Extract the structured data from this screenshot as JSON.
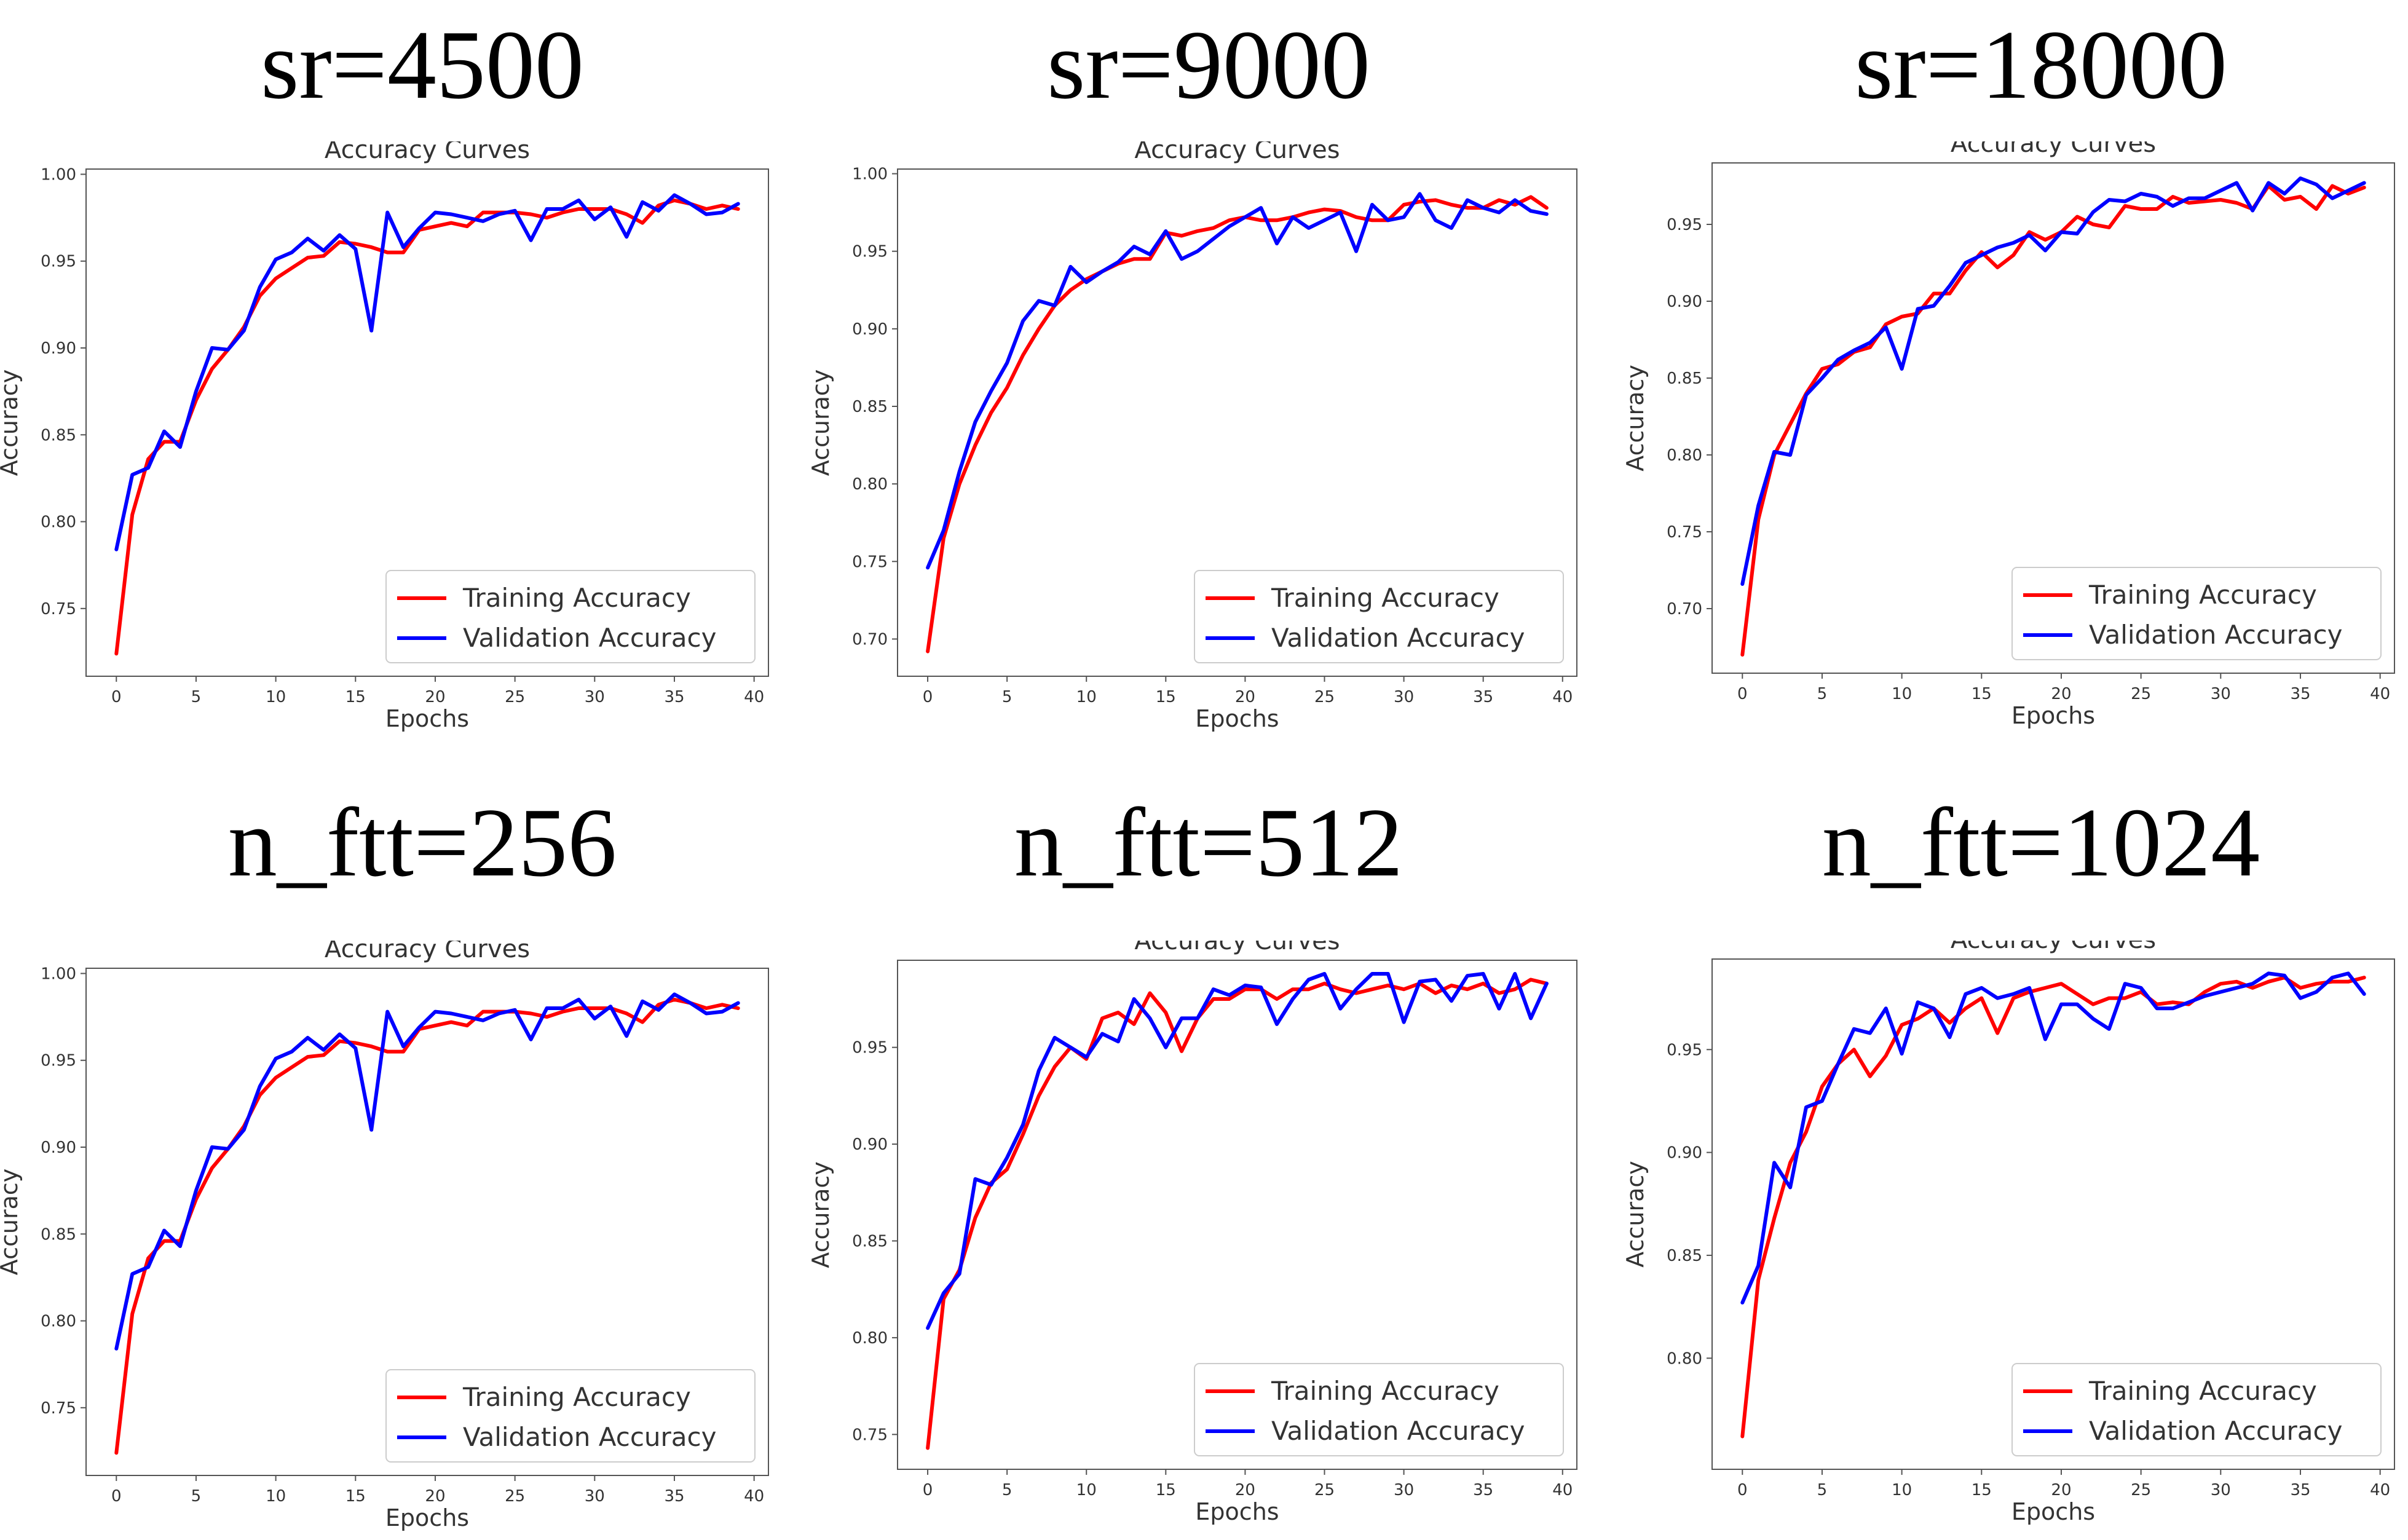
{
  "colors": {
    "training": "#ff0000",
    "validation": "#0000ff",
    "axis": "#555555",
    "text": "#333333"
  },
  "chart_data": [
    {
      "type": "line",
      "panel_title": "sr=4500",
      "title": "Accuracy Curves",
      "xlabel": "Epochs",
      "ylabel": "Accuracy",
      "xlim": [
        -1.9,
        40.9
      ],
      "ylim": [
        0.711,
        1.003
      ],
      "xticks": [
        "0",
        "5",
        "10",
        "15",
        "20",
        "25",
        "30",
        "35",
        "40"
      ],
      "yticks": [
        "0.75",
        "0.80",
        "0.85",
        "0.90",
        "0.95",
        "1.00"
      ],
      "legend": [
        "Training Accuracy",
        "Validation Accuracy"
      ],
      "legend_position": "lower-right",
      "series": [
        {
          "name": "Training Accuracy",
          "values": [
            0.724,
            0.804,
            0.836,
            0.846,
            0.846,
            0.87,
            0.888,
            0.899,
            0.912,
            0.93,
            0.94,
            0.946,
            0.952,
            0.953,
            0.961,
            0.96,
            0.958,
            0.955,
            0.955,
            0.968,
            0.97,
            0.972,
            0.97,
            0.978,
            0.978,
            0.978,
            0.977,
            0.975,
            0.978,
            0.98,
            0.98,
            0.98,
            0.977,
            0.972,
            0.982,
            0.985,
            0.983,
            0.98,
            0.982,
            0.98
          ]
        },
        {
          "name": "Validation Accuracy",
          "values": [
            0.784,
            0.827,
            0.831,
            0.852,
            0.843,
            0.875,
            0.9,
            0.899,
            0.91,
            0.935,
            0.951,
            0.955,
            0.963,
            0.956,
            0.965,
            0.957,
            0.91,
            0.978,
            0.958,
            0.969,
            0.978,
            0.977,
            0.975,
            0.973,
            0.977,
            0.979,
            0.962,
            0.98,
            0.98,
            0.985,
            0.974,
            0.981,
            0.964,
            0.984,
            0.979,
            0.988,
            0.983,
            0.977,
            0.978,
            0.983
          ]
        }
      ]
    },
    {
      "type": "line",
      "panel_title": "sr=9000",
      "title": "Accuracy Curves",
      "xlabel": "Epochs",
      "ylabel": "Accuracy",
      "xlim": [
        -1.9,
        40.9
      ],
      "ylim": [
        0.676,
        1.003
      ],
      "xticks": [
        "0",
        "5",
        "10",
        "15",
        "20",
        "25",
        "30",
        "35",
        "40"
      ],
      "yticks": [
        "0.70",
        "0.75",
        "0.80",
        "0.85",
        "0.90",
        "0.95",
        "1.00"
      ],
      "legend": [
        "Training Accuracy",
        "Validation Accuracy"
      ],
      "legend_position": "lower-right",
      "series": [
        {
          "name": "Training Accuracy",
          "values": [
            0.692,
            0.765,
            0.8,
            0.825,
            0.846,
            0.862,
            0.883,
            0.9,
            0.915,
            0.925,
            0.932,
            0.937,
            0.942,
            0.945,
            0.945,
            0.962,
            0.96,
            0.963,
            0.965,
            0.97,
            0.972,
            0.97,
            0.97,
            0.972,
            0.975,
            0.977,
            0.976,
            0.972,
            0.97,
            0.97,
            0.98,
            0.982,
            0.983,
            0.98,
            0.978,
            0.978,
            0.983,
            0.98,
            0.985,
            0.978
          ]
        },
        {
          "name": "Validation Accuracy",
          "values": [
            0.746,
            0.77,
            0.808,
            0.84,
            0.86,
            0.878,
            0.905,
            0.918,
            0.915,
            0.94,
            0.93,
            0.937,
            0.943,
            0.953,
            0.948,
            0.963,
            0.945,
            0.95,
            0.958,
            0.966,
            0.972,
            0.978,
            0.955,
            0.972,
            0.965,
            0.97,
            0.975,
            0.95,
            0.98,
            0.97,
            0.972,
            0.987,
            0.97,
            0.965,
            0.983,
            0.978,
            0.975,
            0.983,
            0.976,
            0.974
          ]
        }
      ]
    },
    {
      "type": "line",
      "panel_title": "sr=18000",
      "title": "Accuracy Curves",
      "xlabel": "Epochs",
      "ylabel": "Accuracy",
      "xlim": [
        -1.9,
        40.9
      ],
      "ylim": [
        0.658,
        0.99
      ],
      "xticks": [
        "0",
        "5",
        "10",
        "15",
        "20",
        "25",
        "30",
        "35",
        "40"
      ],
      "yticks": [
        "0.70",
        "0.75",
        "0.80",
        "0.85",
        "0.90",
        "0.95"
      ],
      "legend": [
        "Training Accuracy",
        "Validation Accuracy"
      ],
      "legend_position": "lower-right",
      "series": [
        {
          "name": "Training Accuracy",
          "values": [
            0.67,
            0.758,
            0.8,
            0.82,
            0.84,
            0.856,
            0.859,
            0.867,
            0.87,
            0.885,
            0.89,
            0.892,
            0.905,
            0.905,
            0.92,
            0.932,
            0.922,
            0.93,
            0.945,
            0.94,
            0.945,
            0.955,
            0.95,
            0.948,
            0.962,
            0.96,
            0.96,
            0.968,
            0.964,
            0.965,
            0.966,
            0.964,
            0.96,
            0.975,
            0.966,
            0.968,
            0.96,
            0.975,
            0.97,
            0.974
          ]
        },
        {
          "name": "Validation Accuracy",
          "values": [
            0.716,
            0.767,
            0.802,
            0.8,
            0.839,
            0.85,
            0.862,
            0.868,
            0.873,
            0.883,
            0.856,
            0.895,
            0.897,
            0.91,
            0.925,
            0.93,
            0.935,
            0.938,
            0.943,
            0.933,
            0.945,
            0.944,
            0.958,
            0.966,
            0.965,
            0.97,
            0.968,
            0.962,
            0.967,
            0.967,
            0.972,
            0.977,
            0.959,
            0.977,
            0.97,
            0.98,
            0.976,
            0.967,
            0.972,
            0.977
          ]
        }
      ]
    },
    {
      "type": "line",
      "panel_title": "n_ftt=256",
      "title": "Accuracy Curves",
      "xlabel": "Epochs",
      "ylabel": "Accuracy",
      "xlim": [
        -1.9,
        40.9
      ],
      "ylim": [
        0.711,
        1.003
      ],
      "xticks": [
        "0",
        "5",
        "10",
        "15",
        "20",
        "25",
        "30",
        "35",
        "40"
      ],
      "yticks": [
        "0.75",
        "0.80",
        "0.85",
        "0.90",
        "0.95",
        "1.00"
      ],
      "legend": [
        "Training Accuracy",
        "Validation Accuracy"
      ],
      "legend_position": "lower-right",
      "series": [
        {
          "name": "Training Accuracy",
          "values": [
            0.724,
            0.804,
            0.836,
            0.846,
            0.846,
            0.87,
            0.888,
            0.899,
            0.912,
            0.93,
            0.94,
            0.946,
            0.952,
            0.953,
            0.961,
            0.96,
            0.958,
            0.955,
            0.955,
            0.968,
            0.97,
            0.972,
            0.97,
            0.978,
            0.978,
            0.978,
            0.977,
            0.975,
            0.978,
            0.98,
            0.98,
            0.98,
            0.977,
            0.972,
            0.982,
            0.985,
            0.983,
            0.98,
            0.982,
            0.98
          ]
        },
        {
          "name": "Validation Accuracy",
          "values": [
            0.784,
            0.827,
            0.831,
            0.852,
            0.843,
            0.875,
            0.9,
            0.899,
            0.91,
            0.935,
            0.951,
            0.955,
            0.963,
            0.956,
            0.965,
            0.957,
            0.91,
            0.978,
            0.958,
            0.969,
            0.978,
            0.977,
            0.975,
            0.973,
            0.977,
            0.979,
            0.962,
            0.98,
            0.98,
            0.985,
            0.974,
            0.981,
            0.964,
            0.984,
            0.979,
            0.988,
            0.983,
            0.977,
            0.978,
            0.983
          ]
        }
      ]
    },
    {
      "type": "line",
      "panel_title": "n_ftt=512",
      "title": "Accuracy Curves",
      "xlabel": "Epochs",
      "ylabel": "Accuracy",
      "xlim": [
        -1.9,
        40.9
      ],
      "ylim": [
        0.732,
        0.995
      ],
      "xticks": [
        "0",
        "5",
        "10",
        "15",
        "20",
        "25",
        "30",
        "35",
        "40"
      ],
      "yticks": [
        "0.75",
        "0.80",
        "0.85",
        "0.90",
        "0.95"
      ],
      "legend": [
        "Training Accuracy",
        "Validation Accuracy"
      ],
      "legend_position": "lower-right",
      "series": [
        {
          "name": "Training Accuracy",
          "values": [
            0.743,
            0.82,
            0.835,
            0.862,
            0.88,
            0.887,
            0.905,
            0.925,
            0.94,
            0.95,
            0.944,
            0.965,
            0.968,
            0.962,
            0.978,
            0.968,
            0.948,
            0.965,
            0.975,
            0.975,
            0.98,
            0.98,
            0.975,
            0.98,
            0.98,
            0.983,
            0.98,
            0.978,
            0.98,
            0.982,
            0.98,
            0.983,
            0.978,
            0.982,
            0.98,
            0.983,
            0.978,
            0.98,
            0.985,
            0.983
          ]
        },
        {
          "name": "Validation Accuracy",
          "values": [
            0.805,
            0.823,
            0.833,
            0.882,
            0.879,
            0.893,
            0.91,
            0.938,
            0.955,
            0.95,
            0.945,
            0.957,
            0.953,
            0.975,
            0.965,
            0.95,
            0.965,
            0.965,
            0.98,
            0.977,
            0.982,
            0.981,
            0.962,
            0.975,
            0.985,
            0.988,
            0.97,
            0.98,
            0.988,
            0.988,
            0.963,
            0.984,
            0.985,
            0.974,
            0.987,
            0.988,
            0.97,
            0.988,
            0.965,
            0.983
          ]
        }
      ]
    },
    {
      "type": "line",
      "panel_title": "n_ftt=1024",
      "title": "Accuracy Curves",
      "xlabel": "Epochs",
      "ylabel": "Accuracy",
      "xlim": [
        -1.9,
        40.9
      ],
      "ylim": [
        0.746,
        0.994
      ],
      "xticks": [
        "0",
        "5",
        "10",
        "15",
        "20",
        "25",
        "30",
        "35",
        "40"
      ],
      "yticks": [
        "0.80",
        "0.85",
        "0.90",
        "0.95"
      ],
      "legend": [
        "Training Accuracy",
        "Validation Accuracy"
      ],
      "legend_position": "lower-right",
      "series": [
        {
          "name": "Training Accuracy",
          "values": [
            0.762,
            0.838,
            0.868,
            0.895,
            0.91,
            0.932,
            0.943,
            0.95,
            0.937,
            0.947,
            0.962,
            0.965,
            0.97,
            0.963,
            0.97,
            0.975,
            0.958,
            0.975,
            0.978,
            0.98,
            0.982,
            0.977,
            0.972,
            0.975,
            0.975,
            0.978,
            0.972,
            0.973,
            0.972,
            0.978,
            0.982,
            0.983,
            0.98,
            0.983,
            0.985,
            0.98,
            0.982,
            0.983,
            0.983,
            0.985
          ]
        },
        {
          "name": "Validation Accuracy",
          "values": [
            0.827,
            0.845,
            0.895,
            0.883,
            0.922,
            0.925,
            0.943,
            0.96,
            0.958,
            0.97,
            0.948,
            0.973,
            0.97,
            0.956,
            0.977,
            0.98,
            0.975,
            0.977,
            0.98,
            0.955,
            0.972,
            0.972,
            0.965,
            0.96,
            0.982,
            0.98,
            0.97,
            0.97,
            0.973,
            0.976,
            0.978,
            0.98,
            0.982,
            0.987,
            0.986,
            0.975,
            0.978,
            0.985,
            0.987,
            0.977
          ]
        }
      ]
    }
  ]
}
